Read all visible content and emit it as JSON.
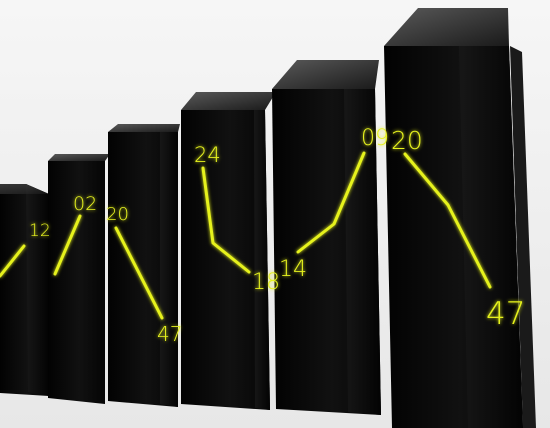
{
  "scene": {
    "background_color": "#f0f0f0",
    "bar_color": "#050505",
    "line_color": "#e6f21f",
    "glow_color": "#d8ff2a"
  },
  "labels": {
    "l12": "12",
    "l02": "02",
    "l20a": "20",
    "l47a": "47",
    "l24": "24",
    "l18": "18",
    "l14": "14",
    "l09": "09",
    "l20b": "20",
    "l47b": "47"
  }
}
